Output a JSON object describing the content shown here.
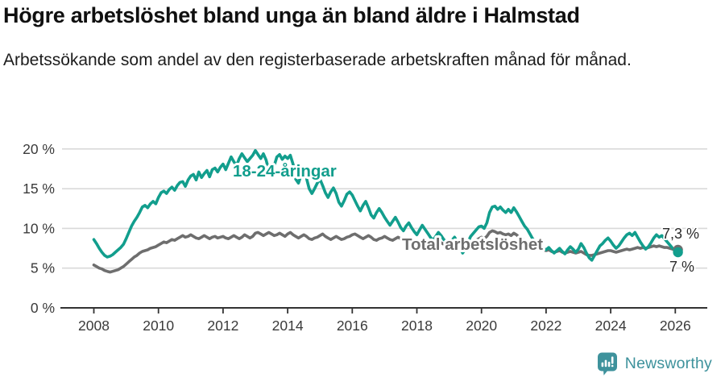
{
  "header": {
    "title": "Högre arbetslöshet bland unga än bland äldre i Halmstad",
    "subtitle": "Arbetssökande som andel av den registerbaserade arbetskraften månad för månad."
  },
  "chart_data": {
    "type": "line",
    "x_start": "2008-01",
    "x_end": "2026-02",
    "x_step_months": 1,
    "x_ticks": [
      2008,
      2010,
      2012,
      2014,
      2016,
      2018,
      2020,
      2022,
      2024,
      2026
    ],
    "y_ticks": [
      0,
      5,
      10,
      15,
      20
    ],
    "y_tick_labels": [
      "0 %",
      "5 %",
      "10 %",
      "15 %",
      "20 %"
    ],
    "ylim": [
      0,
      21.5
    ],
    "grid": "horizontal",
    "legend_position": "inline-labels",
    "series": [
      {
        "name": "18-24-åringar",
        "color": "#129e8d",
        "end_label": "7 %",
        "end_value": 7.0,
        "end_dot": true,
        "values": [
          8.6,
          8.1,
          7.5,
          7.0,
          6.6,
          6.4,
          6.5,
          6.7,
          7.0,
          7.3,
          7.6,
          8.0,
          8.7,
          9.5,
          10.3,
          10.9,
          11.4,
          12.0,
          12.7,
          12.9,
          12.6,
          13.1,
          13.4,
          13.1,
          13.9,
          14.5,
          14.7,
          14.4,
          14.9,
          15.2,
          14.8,
          15.4,
          15.8,
          15.9,
          15.3,
          16.1,
          16.6,
          16.8,
          16.1,
          17.1,
          16.4,
          16.9,
          17.3,
          16.5,
          17.4,
          17.6,
          17.1,
          17.7,
          18.1,
          17.4,
          18.2,
          19.0,
          18.4,
          17.9,
          18.8,
          19.4,
          18.9,
          18.4,
          18.8,
          19.2,
          19.8,
          19.3,
          18.8,
          19.4,
          18.6,
          17.3,
          16.9,
          17.9,
          19.0,
          19.3,
          18.7,
          19.1,
          18.8,
          19.2,
          18.1,
          16.2,
          15.7,
          16.7,
          17.1,
          16.3,
          15.0,
          14.4,
          15.0,
          15.7,
          16.2,
          15.4,
          14.5,
          13.9,
          14.6,
          15.1,
          14.4,
          13.3,
          12.8,
          13.5,
          14.3,
          14.6,
          14.2,
          13.5,
          12.8,
          12.2,
          12.9,
          13.4,
          12.6,
          11.7,
          11.3,
          12.0,
          12.5,
          12.0,
          11.4,
          10.9,
          10.4,
          10.9,
          11.4,
          10.8,
          10.1,
          9.7,
          10.3,
          10.7,
          10.1,
          9.6,
          9.2,
          9.8,
          10.4,
          9.9,
          9.4,
          8.9,
          8.5,
          9.0,
          9.5,
          9.1,
          8.6,
          8.3,
          8.1,
          8.5,
          8.9,
          8.3,
          7.6,
          6.9,
          7.4,
          8.3,
          9.0,
          9.4,
          9.8,
          10.2,
          10.3,
          10.0,
          10.7,
          12.0,
          12.7,
          12.8,
          12.4,
          12.7,
          12.3,
          12.0,
          12.4,
          12.0,
          12.6,
          12.1,
          11.5,
          10.9,
          10.3,
          9.9,
          9.3,
          8.7,
          8.3,
          8.0,
          7.7,
          7.5,
          7.3,
          7.6,
          7.2,
          6.9,
          7.2,
          7.5,
          7.1,
          6.8,
          7.3,
          7.7,
          7.4,
          7.0,
          7.4,
          8.1,
          7.6,
          6.9,
          6.3,
          6.0,
          6.6,
          7.2,
          7.8,
          8.1,
          8.5,
          8.8,
          8.4,
          7.9,
          7.5,
          7.8,
          8.3,
          8.8,
          9.2,
          9.4,
          9.1,
          9.5,
          8.9,
          8.3,
          7.8,
          7.4,
          7.7,
          8.2,
          8.8,
          9.2,
          8.9,
          9.1,
          8.7,
          8.3,
          7.9,
          7.5,
          7.2,
          7.0
        ]
      },
      {
        "name": "Total arbetslöshet",
        "color": "#6e6e6e",
        "end_label": "7,3 %",
        "end_value": 7.3,
        "end_dot": true,
        "values": [
          5.4,
          5.2,
          5.0,
          4.9,
          4.7,
          4.6,
          4.5,
          4.6,
          4.7,
          4.8,
          5.0,
          5.2,
          5.5,
          5.8,
          6.1,
          6.4,
          6.6,
          6.9,
          7.1,
          7.2,
          7.3,
          7.5,
          7.6,
          7.7,
          7.9,
          8.1,
          8.3,
          8.2,
          8.4,
          8.6,
          8.5,
          8.7,
          8.9,
          9.1,
          8.9,
          9.0,
          9.2,
          9.0,
          8.8,
          8.7,
          8.9,
          9.1,
          8.9,
          8.7,
          8.9,
          9.0,
          8.8,
          8.9,
          9.0,
          8.8,
          8.7,
          8.9,
          9.1,
          8.9,
          8.7,
          8.9,
          9.2,
          9.0,
          8.8,
          9.0,
          9.4,
          9.5,
          9.3,
          9.1,
          9.3,
          9.5,
          9.3,
          9.1,
          9.2,
          9.4,
          9.2,
          9.0,
          9.3,
          9.5,
          9.2,
          9.0,
          8.8,
          9.0,
          9.2,
          9.0,
          8.7,
          8.6,
          8.8,
          8.9,
          9.1,
          9.3,
          9.0,
          8.8,
          8.6,
          8.8,
          9.0,
          8.8,
          8.6,
          8.7,
          8.9,
          9.0,
          9.2,
          9.3,
          9.1,
          8.9,
          8.7,
          8.9,
          9.1,
          8.9,
          8.6,
          8.5,
          8.7,
          8.8,
          9.0,
          8.8,
          8.6,
          8.5,
          8.7,
          8.9,
          8.7,
          8.5,
          8.3,
          8.4,
          8.6,
          8.5,
          8.3,
          8.1,
          8.0,
          8.2,
          8.4,
          8.2,
          8.0,
          7.9,
          8.1,
          8.2,
          8.0,
          7.9,
          7.8,
          8.0,
          8.2,
          8.0,
          7.9,
          7.8,
          8.0,
          8.2,
          8.1,
          8.3,
          8.5,
          8.7,
          8.9,
          8.7,
          9.0,
          9.5,
          9.7,
          9.6,
          9.4,
          9.5,
          9.3,
          9.2,
          9.3,
          9.1,
          9.4,
          9.2,
          8.9,
          8.7,
          8.5,
          8.3,
          8.1,
          7.9,
          7.7,
          7.6,
          7.4,
          7.3,
          7.2,
          7.3,
          7.1,
          7.0,
          7.1,
          7.2,
          7.0,
          6.9,
          7.0,
          7.1,
          7.0,
          6.9,
          7.0,
          7.1,
          6.9,
          6.7,
          6.6,
          6.6,
          6.7,
          6.8,
          6.9,
          7.0,
          7.1,
          7.2,
          7.2,
          7.1,
          7.0,
          7.1,
          7.2,
          7.3,
          7.4,
          7.3,
          7.4,
          7.5,
          7.6,
          7.5,
          7.6,
          7.5,
          7.6,
          7.7,
          7.8,
          7.7,
          7.8,
          7.7,
          7.6,
          7.6,
          7.5,
          7.4,
          7.2,
          7.3
        ]
      }
    ]
  },
  "footer": {
    "brand": "Newsworthy"
  }
}
